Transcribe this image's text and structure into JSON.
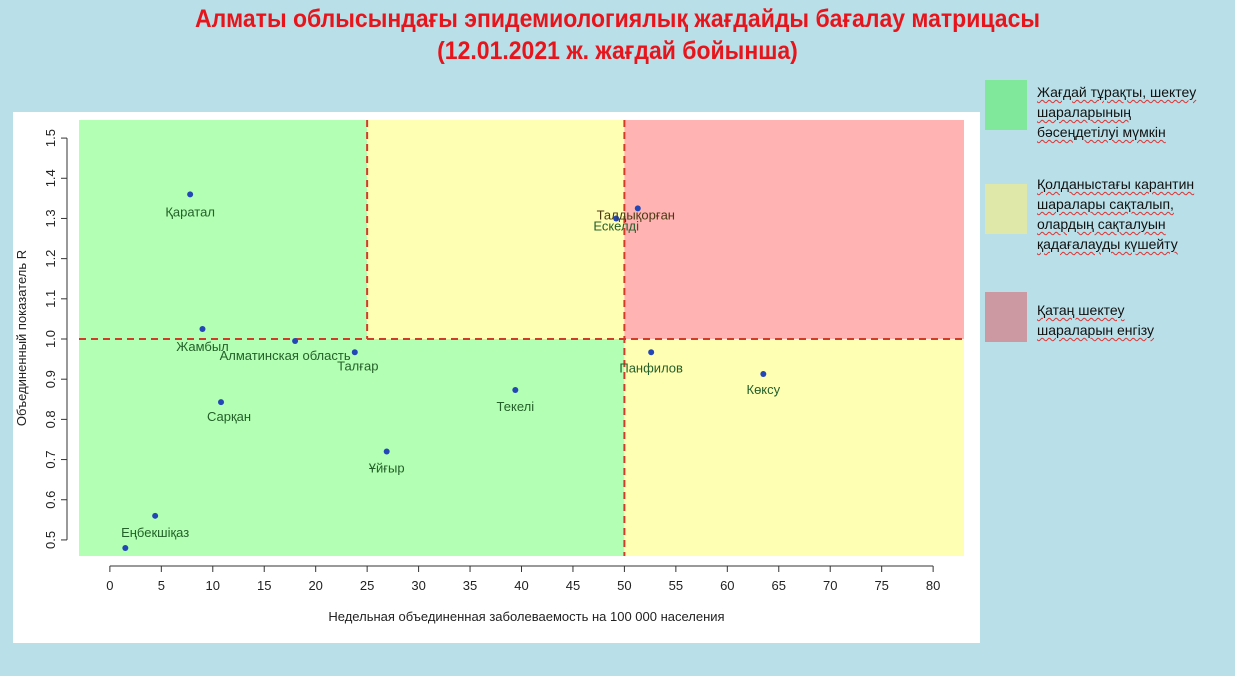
{
  "title_line1": "Алматы облысындағы эпидемиологиялық жағдайды бағалау матрицасы",
  "title_line2": "(12.01.2021 ж. жағдай бойынша)",
  "legend": [
    {
      "color": "#80e89a",
      "lines": [
        "Жағдай тұрақты, шектеу",
        "шараларының",
        "бәсеңдетілуі мүмкін"
      ]
    },
    {
      "color": "#dfe8a8",
      "lines": [
        "Қолданыстағы карантин",
        "шаралары сақталып,",
        "олардың сақталуын",
        "қадағалауды күшейту"
      ]
    },
    {
      "color": "#cc99a2",
      "lines": [
        "Қатаң шектеу",
        "шараларын енгізу"
      ]
    }
  ],
  "chart_data": {
    "type": "scatter",
    "xlabel": "Недельная объединенная заболеваемость на 100 000 населения",
    "ylabel": "Объединенный показатель R",
    "xlim": [
      -3,
      83
    ],
    "ylim": [
      0.46,
      1.545
    ],
    "xticks": [
      0,
      5,
      10,
      15,
      20,
      25,
      30,
      35,
      40,
      45,
      50,
      55,
      60,
      65,
      70,
      75,
      80
    ],
    "xtick_labels": [
      "0",
      "5",
      "10",
      "15",
      "20",
      "25",
      "30",
      "35",
      "40",
      "45",
      "50",
      "55",
      "60",
      "65",
      "70",
      "75",
      "80"
    ],
    "yticks": [
      0.5,
      0.6,
      0.7,
      0.8,
      0.9,
      1.0,
      1.1,
      1.2,
      1.3,
      1.4,
      1.5
    ],
    "ytick_labels": [
      "0.5",
      "0.6",
      "0.7",
      "0.8",
      "0.9",
      "1.0",
      "1.1",
      "1.2",
      "1.3",
      "1.4",
      "1.5"
    ],
    "thresholds": {
      "x": [
        25,
        50
      ],
      "y": 1.0
    },
    "zones": [
      {
        "x": [
          -3,
          25
        ],
        "y": [
          1.0,
          1.545
        ],
        "color": "#b3ffb3"
      },
      {
        "x": [
          25,
          50
        ],
        "y": [
          1.0,
          1.545
        ],
        "color": "#ffffb3"
      },
      {
        "x": [
          50,
          83
        ],
        "y": [
          1.0,
          1.545
        ],
        "color": "#ffb3b3"
      },
      {
        "x": [
          -3,
          50
        ],
        "y": [
          0.46,
          1.0
        ],
        "color": "#b3ffb3"
      },
      {
        "x": [
          50,
          83
        ],
        "y": [
          0.46,
          1.0
        ],
        "color": "#ffffb3"
      }
    ],
    "points": [
      {
        "name": "Қаратал",
        "x": 7.8,
        "y": 1.36
      },
      {
        "name": "Талдықорған",
        "x": 51.3,
        "y": 1.325
      },
      {
        "name": "Ескелді",
        "x": 49.2,
        "y": 1.3
      },
      {
        "name": "Жамбыл",
        "x": 9.0,
        "y": 1.025
      },
      {
        "name": "Алматинская область",
        "x": 18.0,
        "y": 0.995
      },
      {
        "name": "Талғар",
        "x": 23.8,
        "y": 0.967
      },
      {
        "name": "Панфилов",
        "x": 52.6,
        "y": 0.967
      },
      {
        "name": "Көксу",
        "x": 63.5,
        "y": 0.913
      },
      {
        "name": "Текелі",
        "x": 39.4,
        "y": 0.873
      },
      {
        "name": "Сарқан",
        "x": 10.8,
        "y": 0.843
      },
      {
        "name": "Ұйғыр",
        "x": 26.9,
        "y": 0.72
      },
      {
        "name": "Еңбекшіқаз",
        "x": 4.4,
        "y": 0.56
      },
      {
        "name": "",
        "x": 1.5,
        "y": 0.48
      }
    ]
  }
}
